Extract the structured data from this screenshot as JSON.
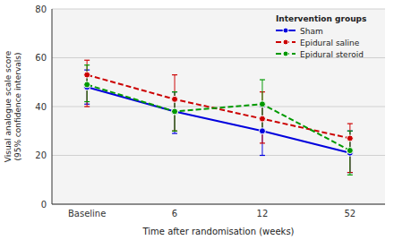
{
  "chart_data": {
    "type": "line",
    "title": "Intervention groups",
    "xlabel": "Time after randomisation (weeks)",
    "ylabel": "Visual analogue scale score\n(95% confidence intervals)",
    "categories": [
      "Baseline",
      "6",
      "12",
      "52"
    ],
    "ylim": [
      0,
      80
    ],
    "yticks": [
      0,
      20,
      40,
      60,
      80
    ],
    "grid": true,
    "legend": "upper right",
    "series": [
      {
        "name": "Sham",
        "color": "#0000dd",
        "line_style": "solid",
        "marker": "circle",
        "values": [
          48,
          38,
          30,
          21
        ],
        "ci_lower": [
          41,
          29,
          20,
          13
        ],
        "ci_upper": [
          55,
          46,
          40,
          30
        ]
      },
      {
        "name": "Epidural saline",
        "color": "#cc0000",
        "line_style": "dashed",
        "marker": "circle",
        "values": [
          53,
          43,
          35,
          27
        ],
        "ci_lower": [
          40,
          30,
          25,
          13
        ],
        "ci_upper": [
          59,
          53,
          46,
          33
        ]
      },
      {
        "name": "Epidural steroid",
        "color": "#009900",
        "line_style": "dashed",
        "marker": "circle",
        "values": [
          49,
          38,
          41,
          22
        ],
        "ci_lower": [
          42,
          30,
          30,
          12
        ],
        "ci_upper": [
          57,
          46,
          51,
          30
        ]
      }
    ]
  }
}
